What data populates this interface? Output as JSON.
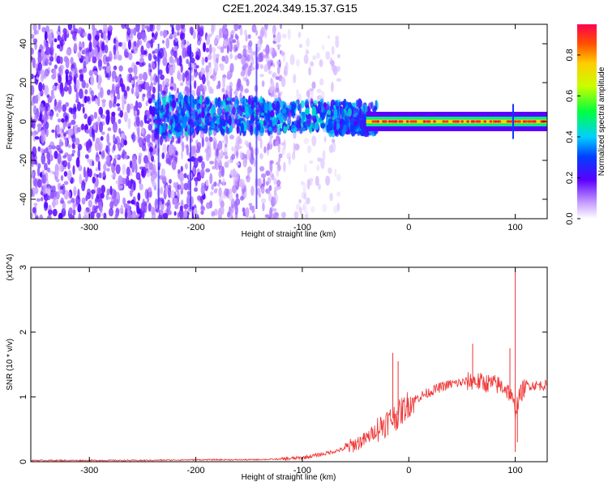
{
  "page_title": "C2E1.2024.349.15.37.G15",
  "chart_data": [
    {
      "type": "heatmap",
      "xlabel": "Height of straight line (km)",
      "ylabel": "Frequency (Hz)",
      "xlim": [
        -355,
        130
      ],
      "ylim": [
        -50,
        50
      ],
      "xticks": [
        -300,
        -200,
        -100,
        0,
        100
      ],
      "yticks": [
        -40,
        -20,
        0,
        20,
        40
      ],
      "colorbar": {
        "label": "Normalized spectral amplitude",
        "range": [
          0,
          0.95
        ],
        "ticks": [
          0.0,
          0.2,
          0.4,
          0.6,
          0.8
        ]
      },
      "description": "Broadband noise at low heights; signal converges to a narrow line near 0 Hz above about -60 km"
    },
    {
      "type": "line",
      "xlabel": "Height of straight line (km)",
      "ylabel": "SNR (10 * v/v)",
      "yscale_label": "(x10^4)",
      "xlim": [
        -355,
        130
      ],
      "ylim": [
        0,
        3
      ],
      "xticks": [
        -300,
        -200,
        -100,
        0,
        100
      ],
      "yticks": [
        0,
        1,
        2,
        3
      ],
      "series": [
        {
          "color": "#ee3333",
          "x": [
            -355,
            -300,
            -250,
            -200,
            -150,
            -120,
            -100,
            -80,
            -60,
            -40,
            -30,
            -20,
            -10,
            0,
            10,
            20,
            30,
            40,
            50,
            60,
            70,
            80,
            90,
            95,
            100,
            105,
            110,
            120,
            130
          ],
          "y": [
            0.02,
            0.02,
            0.02,
            0.03,
            0.03,
            0.04,
            0.06,
            0.12,
            0.2,
            0.35,
            0.5,
            0.62,
            0.72,
            0.9,
            1.0,
            1.08,
            1.15,
            1.2,
            1.22,
            1.25,
            1.22,
            1.2,
            1.15,
            1.05,
            0.8,
            1.05,
            1.18,
            1.18,
            1.18
          ]
        }
      ]
    }
  ]
}
